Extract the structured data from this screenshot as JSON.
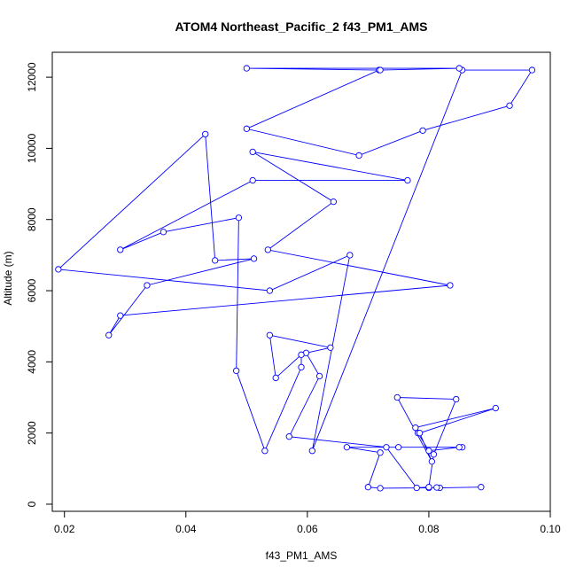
{
  "chart_data": {
    "type": "line",
    "title": "ATOM4 Northeast_Pacific_2 f43_PM1_AMS",
    "xlabel": "f43_PM1_AMS",
    "ylabel": "Altitude (m)",
    "xlim": [
      0.018,
      0.1
    ],
    "ylim": [
      -200,
      12700
    ],
    "xticks": [
      0.02,
      0.04,
      0.06,
      0.08,
      0.1
    ],
    "xtick_labels": [
      "0.02",
      "0.04",
      "0.06",
      "0.08",
      "0.10"
    ],
    "yticks": [
      0,
      2000,
      4000,
      6000,
      8000,
      10000,
      12000
    ],
    "ytick_labels": [
      "0",
      "2000",
      "4000",
      "6000",
      "8000",
      "10000",
      "12000"
    ],
    "grid": false,
    "legend": "none",
    "markers": "open-circle",
    "color": "#0000ff",
    "series": [
      {
        "x": [
          0.0886,
          0.0818,
          0.0813,
          0.08,
          0.072,
          0.07,
          0.072,
          0.0665,
          0.075,
          0.0855,
          0.085,
          0.08,
          0.0782,
          0.0778,
          0.091,
          0.0785,
          0.0805,
          0.0748,
          0.0845,
          0.0808,
          0.08,
          0.078,
          0.073,
          0.057,
          0.062,
          0.0598,
          0.0638,
          0.0538,
          0.0548,
          0.059,
          0.059,
          0.053,
          0.0483,
          0.0487,
          0.0363,
          0.0292,
          0.051,
          0.0765,
          0.051,
          0.0643,
          0.0535,
          0.0835,
          0.0292,
          0.0273,
          0.0336,
          0.0512,
          0.0448,
          0.0432,
          0.019,
          0.0538,
          0.067,
          0.0608,
          0.0855,
          0.097,
          0.0933,
          0.079,
          0.0685,
          0.05,
          0.0718,
          0.085,
          0.05,
          0.072
        ],
        "y": [
          480,
          460,
          470,
          460,
          450,
          480,
          1450,
          1600,
          1600,
          1600,
          1600,
          1500,
          2000,
          2150,
          2700,
          2000,
          1200,
          3000,
          2950,
          1400,
          480,
          460,
          1600,
          1900,
          3600,
          4250,
          4400,
          4750,
          3550,
          4200,
          3850,
          1500,
          3750,
          8050,
          7650,
          7150,
          9100,
          9100,
          9900,
          8500,
          7150,
          6150,
          5300,
          4750,
          6150,
          6900,
          6850,
          10400,
          6600,
          6000,
          7000,
          1500,
          12200,
          12200,
          11200,
          10500,
          9800,
          10550,
          12200,
          12250,
          12250,
          12200
        ]
      }
    ]
  }
}
